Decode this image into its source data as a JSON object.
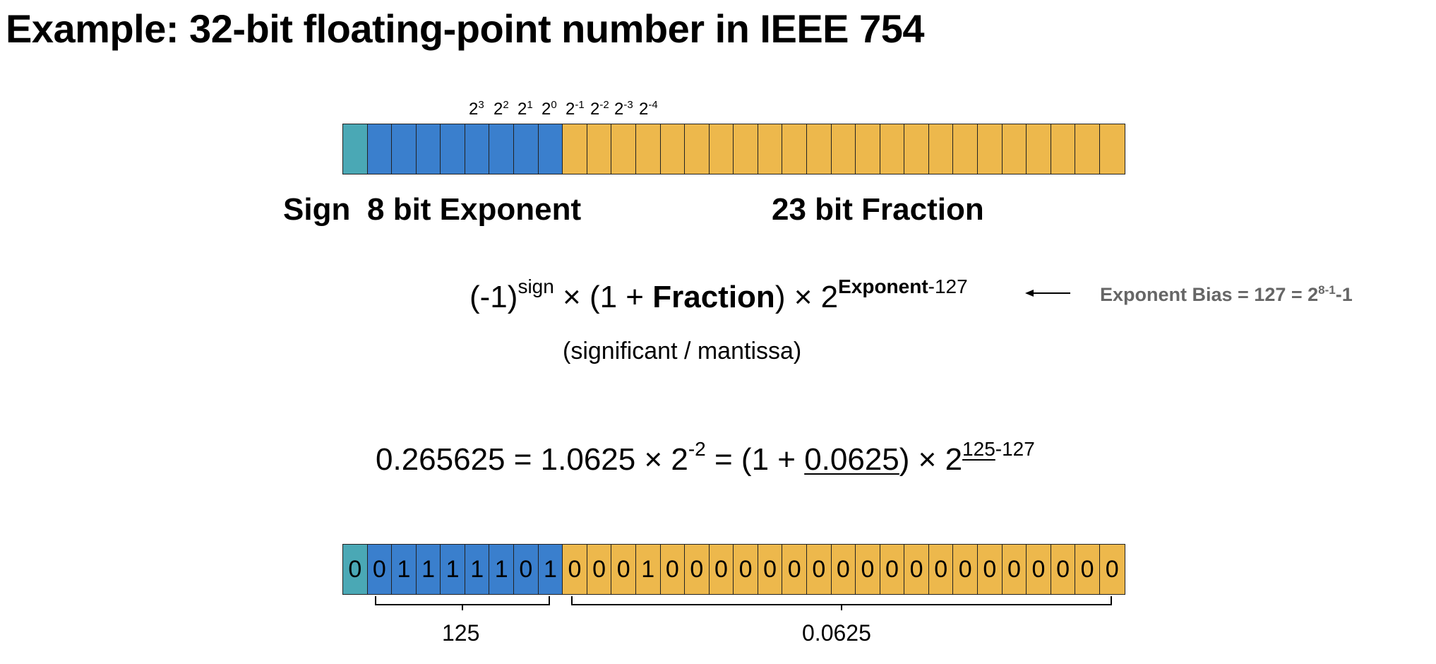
{
  "title": "Example: 32-bit floating-point number in IEEE 754",
  "powers": [
    {
      "base": "2",
      "exp": "3"
    },
    {
      "base": "2",
      "exp": "2"
    },
    {
      "base": "2",
      "exp": "1"
    },
    {
      "base": "2",
      "exp": "0"
    },
    {
      "base": "2",
      "exp": "-1"
    },
    {
      "base": "2",
      "exp": "-2"
    },
    {
      "base": "2",
      "exp": "-3"
    },
    {
      "base": "2",
      "exp": "-4"
    }
  ],
  "labels": {
    "sign": "Sign",
    "exponent": "8 bit Exponent",
    "fraction": "23 bit Fraction"
  },
  "formula": {
    "neg_one": "(-1)",
    "sign_sup": "sign",
    "times_one_plus": " × (1 + ",
    "fraction": "Fraction",
    "close_times_two": ") × 2",
    "exp_bold": "Exponent",
    "exp_rest": "-127"
  },
  "bias": {
    "text": "Exponent Bias = 127 = 2",
    "sup": "8-1",
    "tail": "-1"
  },
  "mantissa_note": "(significant / mantissa)",
  "example": {
    "lhs": "0.265625 = 1.0625 × 2",
    "lhs_sup": "-2",
    "mid": " = (1 + ",
    "frac": "0.0625",
    "rhs": ") × 2",
    "exp_a": "125",
    "exp_b": "-127"
  },
  "bits": [
    "0",
    "0",
    "1",
    "1",
    "1",
    "1",
    "1",
    "0",
    "1",
    "0",
    "0",
    "0",
    "1",
    "0",
    "0",
    "0",
    "0",
    "0",
    "0",
    "0",
    "0",
    "0",
    "0",
    "0",
    "0",
    "0",
    "0",
    "0",
    "0",
    "0",
    "0",
    "0"
  ],
  "brace_labels": {
    "exponent_value": "125",
    "fraction_value": "0.0625"
  },
  "colors": {
    "sign": "#4aa8b5",
    "exponent": "#3a7fcd",
    "fraction": "#edb84c",
    "bias_text": "#666666"
  }
}
